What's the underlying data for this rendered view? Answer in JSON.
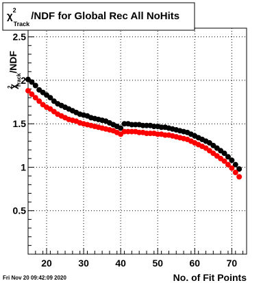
{
  "chart_data": {
    "type": "scatter",
    "title": {
      "symbol": "χ",
      "superscript": "2",
      "subscript": "Track",
      "rest": "/NDF for Global Rec All NoHits"
    },
    "xlabel": "No. of Fit Points",
    "ylabel": {
      "symbol": "χ",
      "superscript": "2",
      "subscript": "Track",
      "rest": "/NDF"
    },
    "xlim": [
      15,
      74
    ],
    "ylim": [
      0,
      2.6
    ],
    "x_ticks": [
      20,
      30,
      40,
      50,
      60,
      70
    ],
    "y_ticks": [
      0.5,
      1,
      1.5,
      2,
      2.5
    ],
    "y_tick_labels": [
      "0.5",
      "1",
      "1.5",
      "2",
      "2.5"
    ],
    "grid": true,
    "timestamp": "Fri Nov 20 09:42:09 2020",
    "x": [
      15,
      16,
      17,
      18,
      19,
      20,
      21,
      22,
      23,
      24,
      25,
      26,
      27,
      28,
      29,
      30,
      31,
      32,
      33,
      34,
      35,
      36,
      37,
      38,
      39,
      40,
      41,
      42,
      43,
      44,
      45,
      46,
      47,
      48,
      49,
      50,
      51,
      52,
      53,
      54,
      55,
      56,
      57,
      58,
      59,
      60,
      61,
      62,
      63,
      64,
      65,
      66,
      67,
      68,
      69,
      70,
      71,
      72
    ],
    "series": [
      {
        "color": "#000000",
        "values": [
          2.01,
          1.98,
          1.94,
          1.89,
          1.86,
          1.83,
          1.8,
          1.76,
          1.73,
          1.71,
          1.69,
          1.67,
          1.65,
          1.63,
          1.61,
          1.6,
          1.59,
          1.57,
          1.56,
          1.55,
          1.54,
          1.53,
          1.51,
          1.49,
          1.47,
          1.45,
          1.5,
          1.5,
          1.49,
          1.49,
          1.49,
          1.48,
          1.48,
          1.48,
          1.47,
          1.47,
          1.46,
          1.46,
          1.45,
          1.44,
          1.43,
          1.42,
          1.41,
          1.4,
          1.38,
          1.36,
          1.34,
          1.32,
          1.3,
          1.28,
          1.25,
          1.22,
          1.19,
          1.16,
          1.12,
          1.08,
          1.03,
          0.98
        ]
      },
      {
        "color": "#ff0000",
        "values": [
          1.88,
          1.84,
          1.8,
          1.76,
          1.72,
          1.69,
          1.67,
          1.64,
          1.61,
          1.59,
          1.57,
          1.55,
          1.54,
          1.53,
          1.51,
          1.5,
          1.49,
          1.48,
          1.47,
          1.46,
          1.45,
          1.44,
          1.43,
          1.42,
          1.4,
          1.38,
          1.41,
          1.41,
          1.41,
          1.41,
          1.4,
          1.4,
          1.39,
          1.39,
          1.39,
          1.38,
          1.38,
          1.37,
          1.37,
          1.36,
          1.35,
          1.34,
          1.33,
          1.32,
          1.3,
          1.28,
          1.26,
          1.24,
          1.22,
          1.19,
          1.16,
          1.13,
          1.1,
          1.07,
          1.03,
          0.99,
          0.94,
          0.89
        ]
      }
    ]
  }
}
